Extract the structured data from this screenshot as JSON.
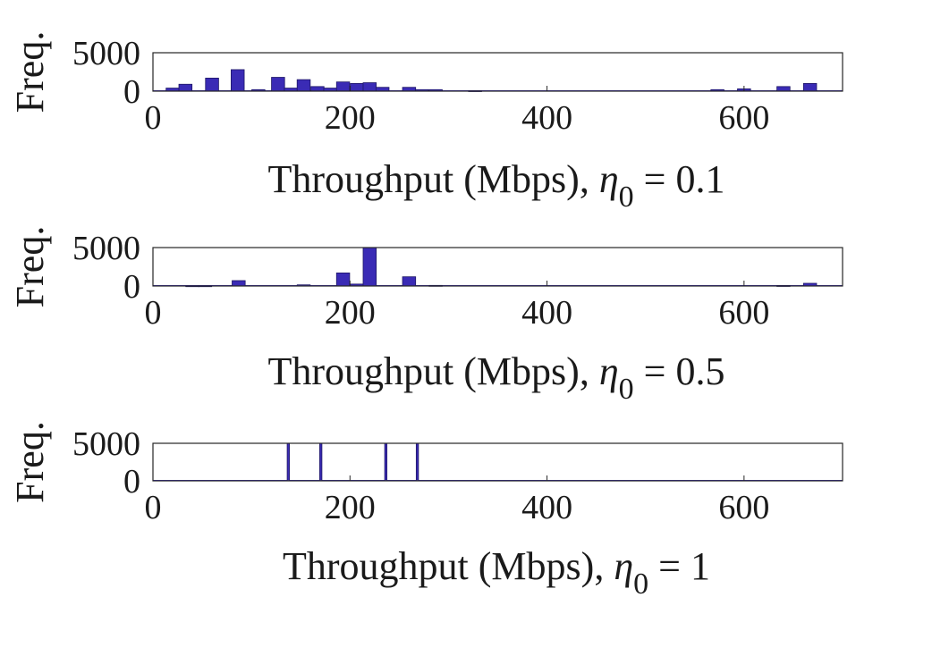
{
  "chart_data": [
    {
      "type": "bar",
      "xlabel": "Throughput (Mbps), ",
      "xlabel_symbol": "η",
      "xlabel_subscript": "0",
      "xlabel_value": " = 0.1",
      "ylabel": "Freq.",
      "xlim": [
        0,
        700
      ],
      "ylim": [
        0,
        5000
      ],
      "xticks": [
        "0",
        "200",
        "400",
        "600"
      ],
      "yticks": [
        "0",
        "5000"
      ],
      "bin_width": 13.3,
      "bar_color": "#3a2bb5",
      "bars": [
        {
          "x": 20,
          "y": 400
        },
        {
          "x": 33,
          "y": 900
        },
        {
          "x": 60,
          "y": 1700
        },
        {
          "x": 86,
          "y": 2800
        },
        {
          "x": 107,
          "y": 200
        },
        {
          "x": 127,
          "y": 1800
        },
        {
          "x": 140,
          "y": 400
        },
        {
          "x": 153,
          "y": 1500
        },
        {
          "x": 167,
          "y": 600
        },
        {
          "x": 180,
          "y": 400
        },
        {
          "x": 193,
          "y": 1200
        },
        {
          "x": 207,
          "y": 1000
        },
        {
          "x": 220,
          "y": 1100
        },
        {
          "x": 233,
          "y": 500
        },
        {
          "x": 260,
          "y": 500
        },
        {
          "x": 273,
          "y": 200
        },
        {
          "x": 287,
          "y": 200
        },
        {
          "x": 327,
          "y": 60
        },
        {
          "x": 573,
          "y": 200
        },
        {
          "x": 600,
          "y": 300
        },
        {
          "x": 640,
          "y": 600
        },
        {
          "x": 667,
          "y": 1000
        }
      ]
    },
    {
      "type": "bar",
      "xlabel": "Throughput (Mbps), ",
      "xlabel_symbol": "η",
      "xlabel_subscript": "0",
      "xlabel_value": " = 0.5",
      "ylabel": "Freq.",
      "xlim": [
        0,
        700
      ],
      "ylim": [
        0,
        5000
      ],
      "xticks": [
        "0",
        "200",
        "400",
        "600"
      ],
      "yticks": [
        "0",
        "5000"
      ],
      "bin_width": 13.3,
      "bar_color": "#3a2bb5",
      "bars": [
        {
          "x": 40,
          "y": 30
        },
        {
          "x": 53,
          "y": 30
        },
        {
          "x": 87,
          "y": 700
        },
        {
          "x": 153,
          "y": 150
        },
        {
          "x": 193,
          "y": 1700
        },
        {
          "x": 207,
          "y": 250
        },
        {
          "x": 220,
          "y": 5000
        },
        {
          "x": 260,
          "y": 1200
        },
        {
          "x": 287,
          "y": 80
        },
        {
          "x": 640,
          "y": 60
        },
        {
          "x": 667,
          "y": 350
        }
      ]
    },
    {
      "type": "bar",
      "xlabel": "Throughput (Mbps), ",
      "xlabel_symbol": "η",
      "xlabel_subscript": "0",
      "xlabel_value": " = 1",
      "ylabel": "Freq.",
      "xlim": [
        0,
        700
      ],
      "ylim": [
        0,
        5000
      ],
      "xticks": [
        "0",
        "200",
        "400",
        "600"
      ],
      "yticks": [
        "0",
        "5000"
      ],
      "bin_width": 1.5,
      "bar_color": "#3a2bb5",
      "bars": [
        {
          "x": 137,
          "y": 5000
        },
        {
          "x": 170,
          "y": 5000
        },
        {
          "x": 236,
          "y": 5000
        },
        {
          "x": 268,
          "y": 5000
        }
      ]
    }
  ]
}
